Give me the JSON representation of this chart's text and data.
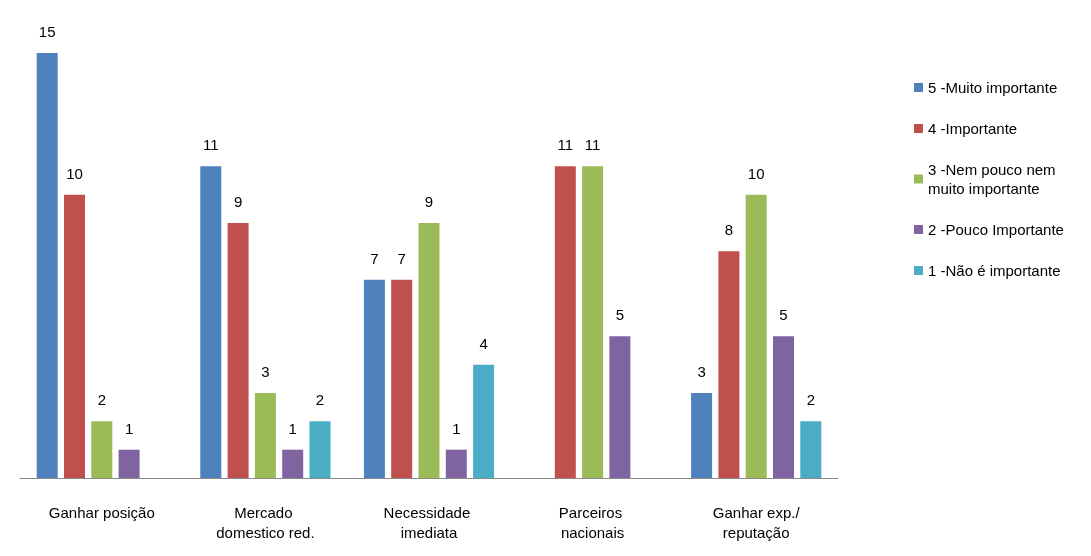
{
  "chart_data": {
    "type": "bar",
    "categories": [
      "Ganhar posição",
      "Mercado domestico red.",
      "Necessidade imediata",
      "Parceiros nacionais",
      "Ganhar exp./reputação"
    ],
    "series": [
      {
        "name": "5 -Muito importante",
        "color": "#4f81bd",
        "values": [
          15,
          11,
          7,
          null,
          3
        ]
      },
      {
        "name": "4 -Importante",
        "color": "#c0504d",
        "values": [
          10,
          9,
          7,
          11,
          8
        ]
      },
      {
        "name": "3 -Nem pouco nem muito importante",
        "color": "#9bbb59",
        "values": [
          2,
          3,
          9,
          11,
          10
        ]
      },
      {
        "name": "2 -Pouco Importante",
        "color": "#8064a2",
        "values": [
          1,
          1,
          1,
          5,
          5
        ]
      },
      {
        "name": "1 -Não é importante",
        "color": "#4bacc6",
        "values": [
          null,
          2,
          4,
          null,
          2
        ]
      }
    ],
    "data_labels": true,
    "grid": false,
    "legend": "right"
  }
}
